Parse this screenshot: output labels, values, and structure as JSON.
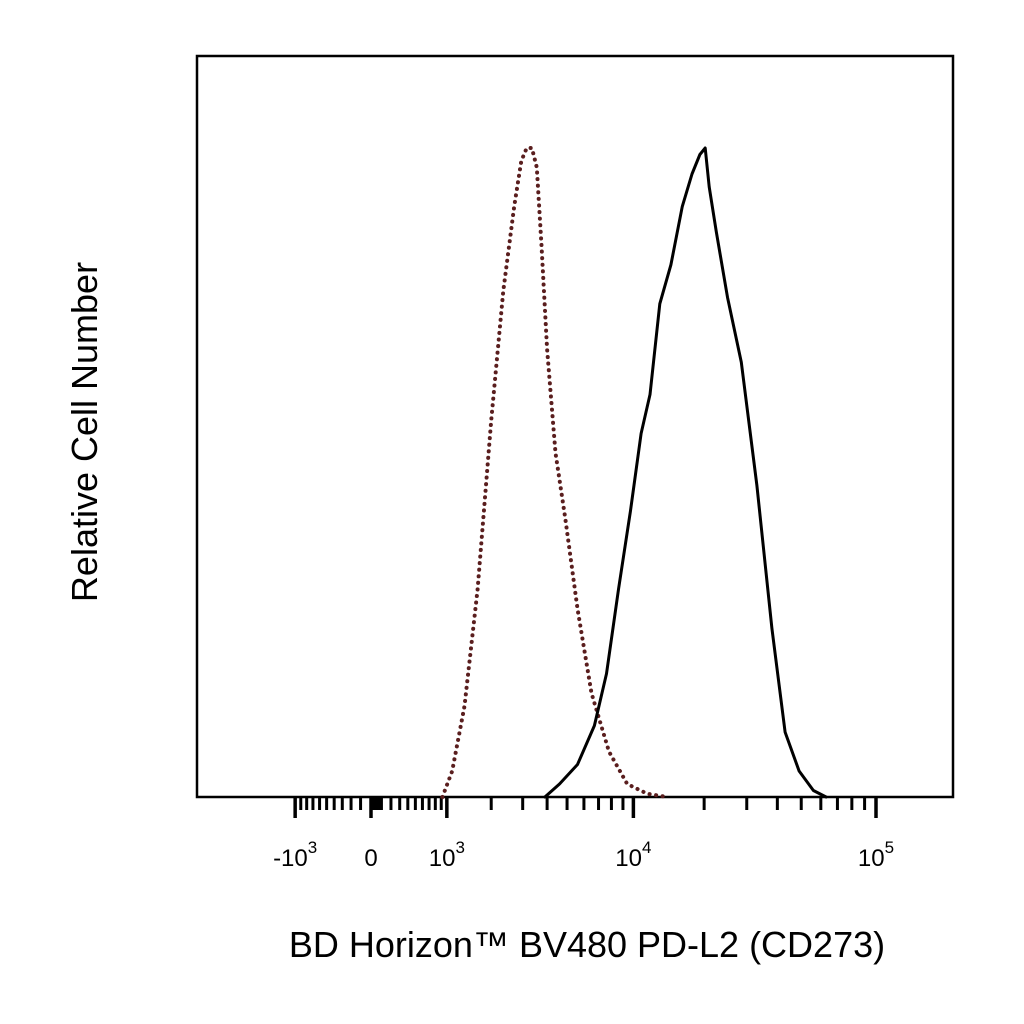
{
  "chart_data": {
    "type": "line",
    "title": "",
    "xlabel": "BD Horizon™ BV480 PD-L2 (CD273)",
    "ylabel": "Relative Cell Number",
    "x_scale": "biexponential",
    "xlim": [
      -1800,
      140000
    ],
    "ylim": [
      0,
      1.0
    ],
    "grid": false,
    "legend": "none",
    "x_ticks": [
      {
        "value": -1000,
        "base": "-10",
        "exp": "3"
      },
      {
        "value": 0,
        "base": "0",
        "exp": ""
      },
      {
        "value": 1000,
        "base": "10",
        "exp": "3"
      },
      {
        "value": 10000,
        "base": "10",
        "exp": "4"
      },
      {
        "value": 100000,
        "base": "10",
        "exp": "5"
      }
    ],
    "series": [
      {
        "style": "dotted",
        "color": "#5a1e1e",
        "x": [
          920,
          1100,
          1350,
          1650,
          2000,
          2350,
          2700,
          2950,
          3150,
          3350,
          3550,
          3750,
          4000,
          4400,
          4900,
          5600,
          6500,
          7800,
          9400,
          11500,
          14000
        ],
        "y": [
          0.0,
          0.04,
          0.14,
          0.32,
          0.58,
          0.78,
          0.91,
          0.98,
          1.0,
          1.0,
          0.97,
          0.85,
          0.69,
          0.53,
          0.43,
          0.29,
          0.16,
          0.07,
          0.02,
          0.005,
          0.0
        ]
      },
      {
        "style": "solid",
        "color": "#000000",
        "x": [
          3900,
          4600,
          5600,
          6700,
          7600,
          8600,
          9700,
          10800,
          11800,
          13000,
          14500,
          16200,
          17800,
          19200,
          20200,
          21000,
          22500,
          25000,
          28500,
          33000,
          38000,
          43000,
          49000,
          56000,
          63000
        ],
        "y": [
          0.0,
          0.02,
          0.05,
          0.11,
          0.19,
          0.32,
          0.44,
          0.56,
          0.62,
          0.76,
          0.82,
          0.91,
          0.96,
          0.99,
          1.0,
          0.94,
          0.87,
          0.77,
          0.67,
          0.48,
          0.26,
          0.1,
          0.04,
          0.01,
          0.0
        ]
      }
    ]
  }
}
